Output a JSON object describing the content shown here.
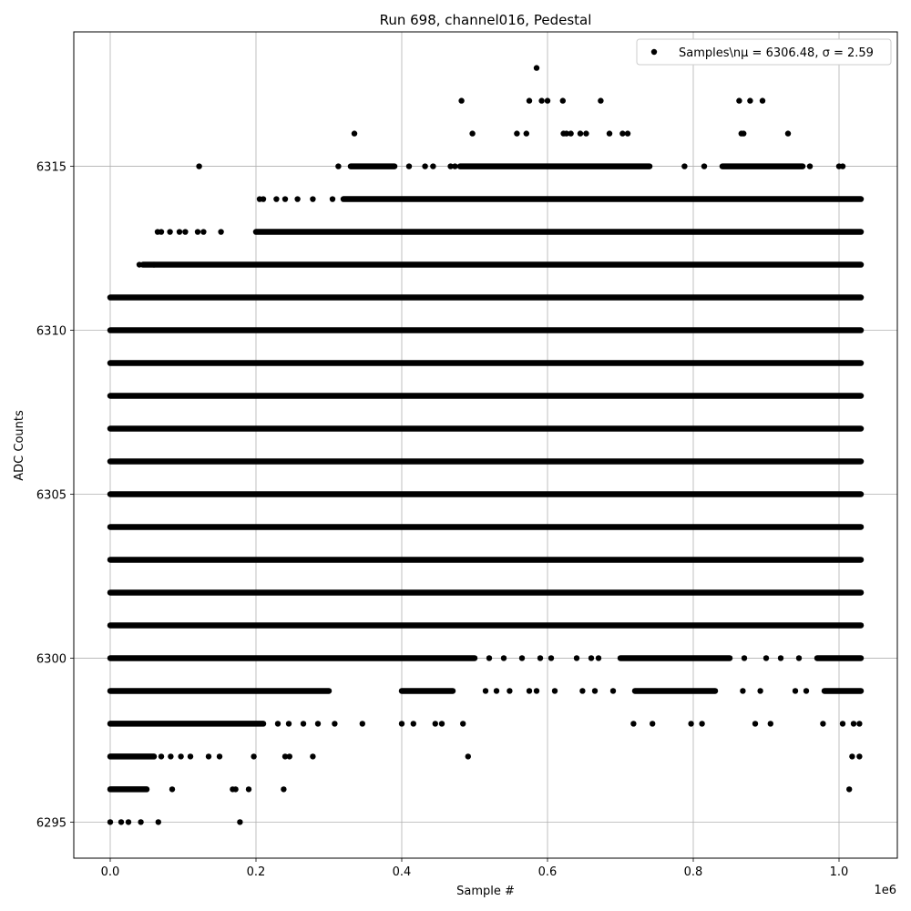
{
  "chart_data": {
    "type": "scatter",
    "title": "Run 698, channel016, Pedestal",
    "xlabel": "Sample #",
    "ylabel": "ADC Counts",
    "x_offset_label": "1e6",
    "x_scale": 1000000,
    "xlim": [
      -0.05,
      1.08
    ],
    "ylim": [
      6293.9,
      6319.1
    ],
    "x_ticks": [
      0.0,
      0.2,
      0.4,
      0.6,
      0.8,
      1.0
    ],
    "x_tick_labels": [
      "0.0",
      "0.2",
      "0.4",
      "0.6",
      "0.8",
      "1.0"
    ],
    "y_ticks": [
      6295,
      6300,
      6305,
      6310,
      6315
    ],
    "y_tick_labels": [
      "6295",
      "6300",
      "6305",
      "6310",
      "6315"
    ],
    "grid": true,
    "legend": {
      "placement": "top-right",
      "entries": [
        "Samples\\n$\\mu$ = 6306.48, $\\sigma$ = 2.59"
      ]
    },
    "legend_text": "Samples\\nμ = 6306.48, σ = 2.59",
    "marker_color": "#000000",
    "n_samples_approx": 1030000,
    "x_max": 1.03,
    "series": [
      {
        "name": "Samples",
        "levels": [
          {
            "y": 6303,
            "segments": [
              [
                0.0,
                1.03
              ]
            ]
          },
          {
            "y": 6304,
            "segments": [
              [
                0.0,
                1.03
              ]
            ]
          },
          {
            "y": 6305,
            "segments": [
              [
                0.0,
                1.03
              ]
            ]
          },
          {
            "y": 6306,
            "segments": [
              [
                0.0,
                1.03
              ]
            ]
          },
          {
            "y": 6307,
            "segments": [
              [
                0.0,
                1.03
              ]
            ]
          },
          {
            "y": 6308,
            "segments": [
              [
                0.0,
                1.03
              ]
            ]
          },
          {
            "y": 6309,
            "segments": [
              [
                0.0,
                1.03
              ]
            ]
          },
          {
            "y": 6310,
            "segments": [
              [
                0.0,
                1.03
              ]
            ]
          },
          {
            "y": 6311,
            "segments": [
              [
                0.0,
                1.03
              ]
            ]
          },
          {
            "y": 6302,
            "segments": [
              [
                0.0,
                1.03
              ]
            ]
          },
          {
            "y": 6301,
            "segments": [
              [
                0.0,
                1.03
              ]
            ]
          },
          {
            "y": 6312,
            "segments": [
              [
                0.045,
                1.03
              ]
            ]
          },
          {
            "y": 6313,
            "segments": [
              [
                0.2,
                1.03
              ]
            ]
          },
          {
            "y": 6300,
            "segments": [
              [
                0.0,
                0.5
              ],
              [
                0.7,
                0.85
              ],
              [
                0.97,
                1.03
              ]
            ]
          },
          {
            "y": 6314,
            "segments": [
              [
                0.32,
                1.03
              ]
            ]
          },
          {
            "y": 6299,
            "segments": [
              [
                0.0,
                0.3
              ],
              [
                0.4,
                0.47
              ],
              [
                0.72,
                0.83
              ],
              [
                0.98,
                1.03
              ]
            ]
          },
          {
            "y": 6315,
            "segments": [
              [
                0.33,
                0.39
              ],
              [
                0.48,
                0.74
              ],
              [
                0.84,
                0.95
              ]
            ]
          },
          {
            "y": 6298,
            "segments": [
              [
                0.0,
                0.21
              ]
            ]
          },
          {
            "y": 6297,
            "segments": [
              [
                0.0,
                0.06
              ]
            ]
          },
          {
            "y": 6296,
            "segments": [
              [
                0.0,
                0.05
              ]
            ]
          }
        ],
        "outliers": [
          {
            "x": 0.0,
            "y": 6295
          },
          {
            "x": 0.015,
            "y": 6295
          },
          {
            "x": 0.025,
            "y": 6295
          },
          {
            "x": 0.042,
            "y": 6295
          },
          {
            "x": 0.066,
            "y": 6295
          },
          {
            "x": 0.178,
            "y": 6295
          },
          {
            "x": 0.085,
            "y": 6296
          },
          {
            "x": 0.168,
            "y": 6296
          },
          {
            "x": 0.172,
            "y": 6296
          },
          {
            "x": 0.19,
            "y": 6296
          },
          {
            "x": 0.238,
            "y": 6296
          },
          {
            "x": 1.014,
            "y": 6296
          },
          {
            "x": 0.07,
            "y": 6297
          },
          {
            "x": 0.083,
            "y": 6297
          },
          {
            "x": 0.097,
            "y": 6297
          },
          {
            "x": 0.11,
            "y": 6297
          },
          {
            "x": 0.135,
            "y": 6297
          },
          {
            "x": 0.15,
            "y": 6297
          },
          {
            "x": 0.197,
            "y": 6297
          },
          {
            "x": 0.24,
            "y": 6297
          },
          {
            "x": 0.246,
            "y": 6297
          },
          {
            "x": 0.278,
            "y": 6297
          },
          {
            "x": 0.491,
            "y": 6297
          },
          {
            "x": 1.018,
            "y": 6297
          },
          {
            "x": 1.028,
            "y": 6297
          },
          {
            "x": 0.23,
            "y": 6298
          },
          {
            "x": 0.245,
            "y": 6298
          },
          {
            "x": 0.265,
            "y": 6298
          },
          {
            "x": 0.285,
            "y": 6298
          },
          {
            "x": 0.308,
            "y": 6298
          },
          {
            "x": 0.346,
            "y": 6298
          },
          {
            "x": 0.4,
            "y": 6298
          },
          {
            "x": 0.416,
            "y": 6298
          },
          {
            "x": 0.446,
            "y": 6298
          },
          {
            "x": 0.455,
            "y": 6298
          },
          {
            "x": 0.484,
            "y": 6298
          },
          {
            "x": 0.718,
            "y": 6298
          },
          {
            "x": 0.744,
            "y": 6298
          },
          {
            "x": 0.797,
            "y": 6298
          },
          {
            "x": 0.812,
            "y": 6298
          },
          {
            "x": 0.885,
            "y": 6298
          },
          {
            "x": 0.906,
            "y": 6298
          },
          {
            "x": 0.978,
            "y": 6298
          },
          {
            "x": 1.005,
            "y": 6298
          },
          {
            "x": 1.02,
            "y": 6298
          },
          {
            "x": 1.028,
            "y": 6298
          },
          {
            "x": 0.515,
            "y": 6299
          },
          {
            "x": 0.53,
            "y": 6299
          },
          {
            "x": 0.548,
            "y": 6299
          },
          {
            "x": 0.575,
            "y": 6299
          },
          {
            "x": 0.585,
            "y": 6299
          },
          {
            "x": 0.61,
            "y": 6299
          },
          {
            "x": 0.648,
            "y": 6299
          },
          {
            "x": 0.665,
            "y": 6299
          },
          {
            "x": 0.69,
            "y": 6299
          },
          {
            "x": 0.868,
            "y": 6299
          },
          {
            "x": 0.892,
            "y": 6299
          },
          {
            "x": 0.94,
            "y": 6299
          },
          {
            "x": 0.955,
            "y": 6299
          },
          {
            "x": 0.52,
            "y": 6300
          },
          {
            "x": 0.54,
            "y": 6300
          },
          {
            "x": 0.565,
            "y": 6300
          },
          {
            "x": 0.59,
            "y": 6300
          },
          {
            "x": 0.605,
            "y": 6300
          },
          {
            "x": 0.64,
            "y": 6300
          },
          {
            "x": 0.66,
            "y": 6300
          },
          {
            "x": 0.67,
            "y": 6300
          },
          {
            "x": 0.87,
            "y": 6300
          },
          {
            "x": 0.9,
            "y": 6300
          },
          {
            "x": 0.92,
            "y": 6300
          },
          {
            "x": 0.945,
            "y": 6300
          },
          {
            "x": 0.06,
            "y": 6312
          },
          {
            "x": 0.04,
            "y": 6312
          },
          {
            "x": 0.065,
            "y": 6313
          },
          {
            "x": 0.07,
            "y": 6313
          },
          {
            "x": 0.082,
            "y": 6313
          },
          {
            "x": 0.095,
            "y": 6313
          },
          {
            "x": 0.103,
            "y": 6313
          },
          {
            "x": 0.12,
            "y": 6313
          },
          {
            "x": 0.128,
            "y": 6313
          },
          {
            "x": 0.152,
            "y": 6313
          },
          {
            "x": 0.205,
            "y": 6314
          },
          {
            "x": 0.21,
            "y": 6314
          },
          {
            "x": 0.228,
            "y": 6314
          },
          {
            "x": 0.24,
            "y": 6314
          },
          {
            "x": 0.257,
            "y": 6314
          },
          {
            "x": 0.278,
            "y": 6314
          },
          {
            "x": 0.305,
            "y": 6314
          },
          {
            "x": 0.122,
            "y": 6315
          },
          {
            "x": 0.313,
            "y": 6315
          },
          {
            "x": 0.41,
            "y": 6315
          },
          {
            "x": 0.432,
            "y": 6315
          },
          {
            "x": 0.443,
            "y": 6315
          },
          {
            "x": 0.467,
            "y": 6315
          },
          {
            "x": 0.473,
            "y": 6315
          },
          {
            "x": 0.788,
            "y": 6315
          },
          {
            "x": 0.815,
            "y": 6315
          },
          {
            "x": 0.96,
            "y": 6315
          },
          {
            "x": 1.0,
            "y": 6315
          },
          {
            "x": 1.005,
            "y": 6315
          },
          {
            "x": 0.335,
            "y": 6316
          },
          {
            "x": 0.497,
            "y": 6316
          },
          {
            "x": 0.558,
            "y": 6316
          },
          {
            "x": 0.571,
            "y": 6316
          },
          {
            "x": 0.622,
            "y": 6316
          },
          {
            "x": 0.626,
            "y": 6316
          },
          {
            "x": 0.632,
            "y": 6316
          },
          {
            "x": 0.645,
            "y": 6316
          },
          {
            "x": 0.653,
            "y": 6316
          },
          {
            "x": 0.685,
            "y": 6316
          },
          {
            "x": 0.703,
            "y": 6316
          },
          {
            "x": 0.71,
            "y": 6316
          },
          {
            "x": 0.866,
            "y": 6316
          },
          {
            "x": 0.869,
            "y": 6316
          },
          {
            "x": 0.93,
            "y": 6316
          },
          {
            "x": 0.482,
            "y": 6317
          },
          {
            "x": 0.575,
            "y": 6317
          },
          {
            "x": 0.592,
            "y": 6317
          },
          {
            "x": 0.6,
            "y": 6317
          },
          {
            "x": 0.621,
            "y": 6317
          },
          {
            "x": 0.673,
            "y": 6317
          },
          {
            "x": 0.863,
            "y": 6317
          },
          {
            "x": 0.878,
            "y": 6317
          },
          {
            "x": 0.895,
            "y": 6317
          },
          {
            "x": 0.585,
            "y": 6318
          }
        ]
      }
    ]
  }
}
